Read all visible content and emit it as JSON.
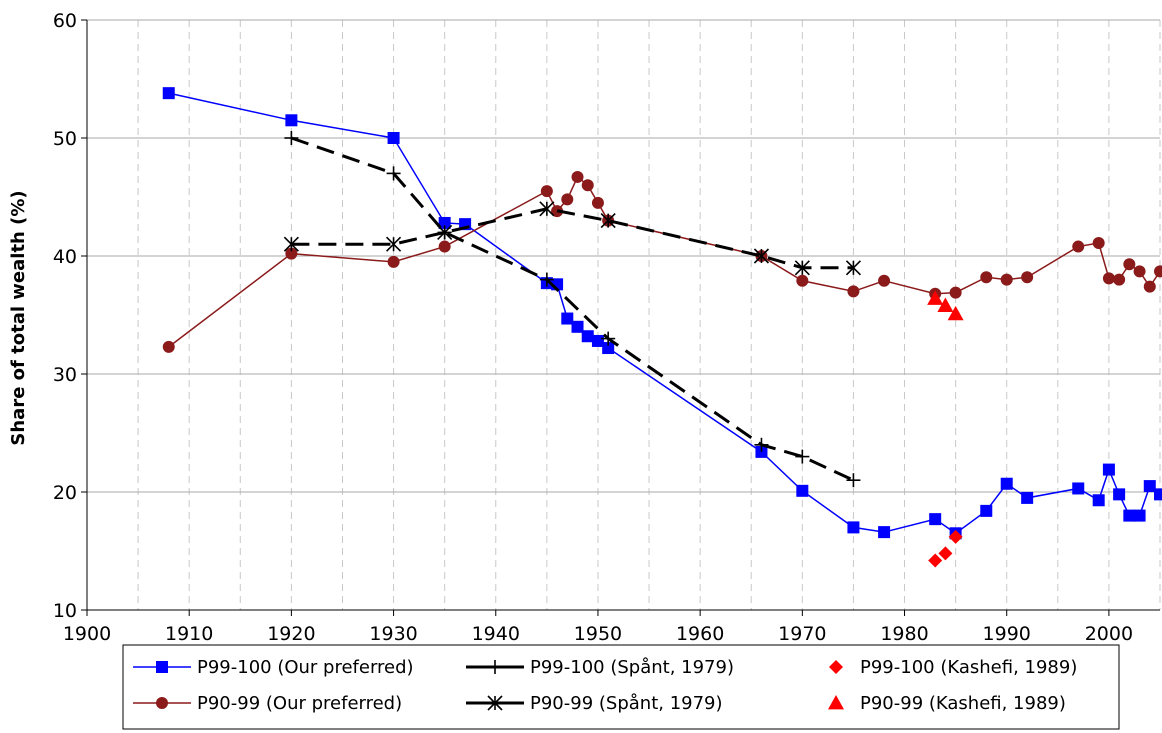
{
  "chart_data": {
    "type": "line",
    "ylabel": "Share of total wealth (%)",
    "xlabel": "",
    "xlim": [
      1900,
      2005
    ],
    "ylim": [
      10,
      60
    ],
    "x_ticks": [
      "1900",
      "1910",
      "1920",
      "1930",
      "1940",
      "1950",
      "1960",
      "1970",
      "1980",
      "1990",
      "2000"
    ],
    "y_ticks": [
      "10",
      "20",
      "30",
      "40",
      "50",
      "60"
    ],
    "grid": {
      "horizontal": true,
      "vertical_dashed": true
    },
    "legend_position": "bottom",
    "series": [
      {
        "name": "P99-100 (Our preferred)",
        "color": "#0000ff",
        "marker": "square",
        "line": "solid",
        "points": [
          [
            1908,
            53.8
          ],
          [
            1920,
            51.5
          ],
          [
            1930,
            50.0
          ],
          [
            1935,
            42.8
          ],
          [
            1937,
            42.7
          ],
          [
            1945,
            37.7
          ],
          [
            1946,
            37.6
          ],
          [
            1947,
            34.7
          ],
          [
            1948,
            34.0
          ],
          [
            1949,
            33.2
          ],
          [
            1950,
            32.8
          ],
          [
            1951,
            32.2
          ],
          [
            1966,
            23.4
          ],
          [
            1970,
            20.1
          ],
          [
            1975,
            17.0
          ],
          [
            1978,
            16.6
          ],
          [
            1983,
            17.7
          ],
          [
            1985,
            16.5
          ],
          [
            1988,
            18.4
          ],
          [
            1990,
            20.7
          ],
          [
            1992,
            19.5
          ],
          [
            1997,
            20.3
          ],
          [
            1999,
            19.3
          ],
          [
            2000,
            21.9
          ],
          [
            2001,
            19.8
          ],
          [
            2002,
            18.0
          ],
          [
            2003,
            18.0
          ],
          [
            2004,
            20.5
          ],
          [
            2005,
            19.8
          ]
        ]
      },
      {
        "name": "P90-99 (Our preferred)",
        "color": "#8b1a1a",
        "marker": "circle",
        "line": "solid",
        "points": [
          [
            1908,
            32.3
          ],
          [
            1920,
            40.2
          ],
          [
            1930,
            39.5
          ],
          [
            1935,
            40.8
          ],
          [
            1945,
            45.5
          ],
          [
            1946,
            43.8
          ],
          [
            1947,
            44.8
          ],
          [
            1948,
            46.7
          ],
          [
            1949,
            46.0
          ],
          [
            1950,
            44.5
          ],
          [
            1951,
            43.0
          ],
          [
            1966,
            40.0
          ],
          [
            1970,
            37.9
          ],
          [
            1975,
            37.0
          ],
          [
            1978,
            37.9
          ],
          [
            1983,
            36.8
          ],
          [
            1985,
            36.9
          ],
          [
            1988,
            38.2
          ],
          [
            1990,
            38.0
          ],
          [
            1992,
            38.2
          ],
          [
            1997,
            40.8
          ],
          [
            1999,
            41.1
          ],
          [
            2000,
            38.1
          ],
          [
            2001,
            38.0
          ],
          [
            2002,
            39.3
          ],
          [
            2003,
            38.7
          ],
          [
            2004,
            37.4
          ],
          [
            2005,
            38.7
          ]
        ]
      },
      {
        "name": "P99-100 (Spånt, 1979)",
        "color": "#000000",
        "marker": "plus",
        "line": "dashed",
        "points": [
          [
            1920,
            50.0
          ],
          [
            1930,
            47.0
          ],
          [
            1935,
            42.0
          ],
          [
            1945,
            38.0
          ],
          [
            1951,
            33.0
          ],
          [
            1966,
            24.0
          ],
          [
            1970,
            23.0
          ],
          [
            1975,
            21.0
          ]
        ]
      },
      {
        "name": "P90-99 (Spånt, 1979)",
        "color": "#000000",
        "marker": "asterisk",
        "line": "dashed",
        "points": [
          [
            1920,
            41.0
          ],
          [
            1930,
            41.0
          ],
          [
            1935,
            42.0
          ],
          [
            1945,
            44.0
          ],
          [
            1951,
            43.0
          ],
          [
            1966,
            40.0
          ],
          [
            1970,
            39.0
          ],
          [
            1975,
            39.0
          ]
        ]
      },
      {
        "name": "P99-100 (Kashefi, 1989)",
        "color": "#ff0000",
        "marker": "diamond",
        "line": "none",
        "points": [
          [
            1983,
            14.2
          ],
          [
            1984,
            14.8
          ],
          [
            1985,
            16.2
          ]
        ]
      },
      {
        "name": "P90-99 (Kashefi, 1989)",
        "color": "#ff0000",
        "marker": "triangle",
        "line": "none",
        "points": [
          [
            1983,
            36.4
          ],
          [
            1984,
            35.8
          ],
          [
            1985,
            35.1
          ]
        ]
      }
    ]
  }
}
